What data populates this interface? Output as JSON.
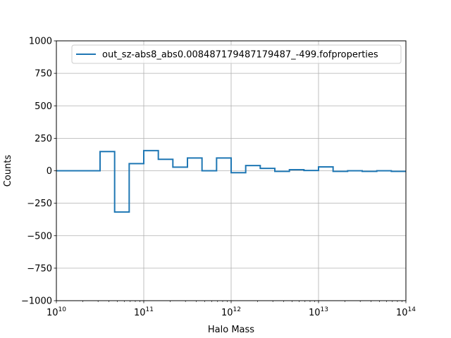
{
  "chart_data": {
    "type": "line",
    "drawstyle": "steps",
    "xscale": "log",
    "xlabel": "Halo Mass",
    "ylabel": "Counts",
    "xlim": [
      10000000000.0,
      100000000000000.0
    ],
    "ylim": [
      -1000,
      1000
    ],
    "grid": true,
    "legend_position": "upper-right",
    "x_ticks": [
      {
        "value": 10000000000.0,
        "base": "10",
        "exp": "10"
      },
      {
        "value": 100000000000.0,
        "base": "10",
        "exp": "11"
      },
      {
        "value": 1000000000000.0,
        "base": "10",
        "exp": "12"
      },
      {
        "value": 10000000000000.0,
        "base": "10",
        "exp": "13"
      },
      {
        "value": 100000000000000.0,
        "base": "10",
        "exp": "14"
      }
    ],
    "y_ticks": [
      {
        "value": 1000,
        "label": "1000"
      },
      {
        "value": 750,
        "label": "750"
      },
      {
        "value": 500,
        "label": "500"
      },
      {
        "value": 250,
        "label": "250"
      },
      {
        "value": 0,
        "label": "0"
      },
      {
        "value": -250,
        "label": "−250"
      },
      {
        "value": -500,
        "label": "−500"
      },
      {
        "value": -750,
        "label": "−750"
      },
      {
        "value": -1000,
        "label": "−1000"
      }
    ],
    "series": [
      {
        "name": "out_sz-abs8_abs0.008487179487179487_-499.fofproperties",
        "color": "#1f77b4",
        "bin_edges": [
          10000000000.0,
          21540000000.0,
          31620000000.0,
          46420000000.0,
          68130000000.0,
          100000000000.0,
          146800000000.0,
          215400000000.0,
          316200000000.0,
          464200000000.0,
          681300000000.0,
          1000000000000.0,
          1468000000000.0,
          2154000000000.0,
          3162000000000.0,
          4642000000000.0,
          6813000000000.0,
          10000000000000.0,
          14680000000000.0,
          21540000000000.0,
          31620000000000.0,
          46420000000000.0,
          68130000000000.0,
          100000000000000.0
        ],
        "values": [
          0,
          0,
          148,
          -318,
          55,
          155,
          88,
          28,
          98,
          0,
          98,
          -15,
          40,
          18,
          -5,
          8,
          2,
          30,
          -5,
          0,
          -5,
          0,
          -5,
          0
        ]
      }
    ]
  }
}
